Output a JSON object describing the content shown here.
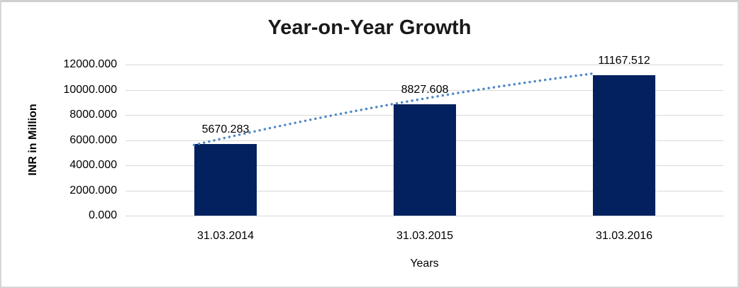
{
  "chart_data": {
    "type": "bar",
    "title": "Year-on-Year Growth",
    "xlabel": "Years",
    "ylabel": "INR in Million",
    "categories": [
      "31.03.2014",
      "31.03.2015",
      "31.03.2016"
    ],
    "values": [
      5670.283,
      8827.608,
      11167.512
    ],
    "data_labels": [
      "5670.283",
      "8827.608",
      "11167.512"
    ],
    "y_ticks": [
      "12000.000",
      "10000.000",
      "8000.000",
      "6000.000",
      "4000.000",
      "2000.000",
      "0.000"
    ],
    "ylim": [
      0,
      12000
    ],
    "grid": "horizontal-only",
    "legend": "none",
    "trendline": {
      "type": "dotted",
      "color": "#4e86c6"
    },
    "colors": {
      "bar": "#03215f",
      "gridline": "#d9d9d9",
      "title_text": "#191919",
      "label_text": "#000000"
    }
  }
}
